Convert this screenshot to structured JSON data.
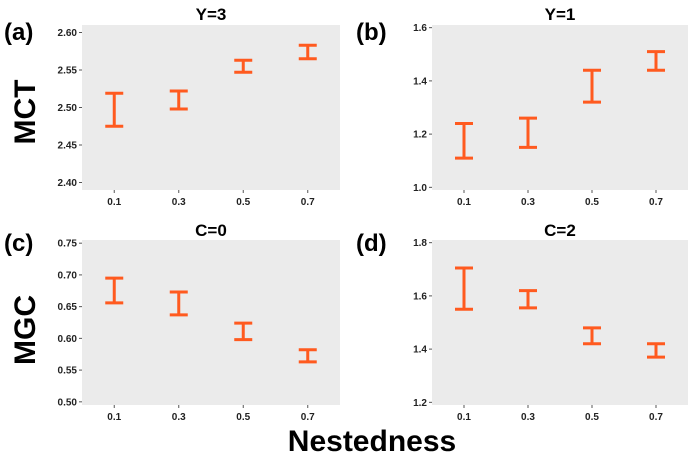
{
  "figure": {
    "x_axis_title": "Nestedness",
    "row_labels": [
      "MCT",
      "MGC"
    ],
    "errorbar_color": "#ff5a1f",
    "panel_background": "#ebebeb"
  },
  "chart_data": [
    {
      "type": "errorbar",
      "panel_letter": "(a)",
      "title": "Y=3",
      "categories": [
        "0.1",
        "0.3",
        "0.5",
        "0.7"
      ],
      "ylim": [
        2.39,
        2.61
      ],
      "yticks": [
        "2.40",
        "2.45",
        "2.50",
        "2.55",
        "2.60"
      ],
      "lower": [
        2.475,
        2.498,
        2.547,
        2.565
      ],
      "upper": [
        2.519,
        2.522,
        2.563,
        2.583
      ]
    },
    {
      "type": "errorbar",
      "panel_letter": "(b)",
      "title": "Y=1",
      "categories": [
        "0.1",
        "0.3",
        "0.5",
        "0.7"
      ],
      "ylim": [
        0.99,
        1.61
      ],
      "yticks": [
        "1.0",
        "1.2",
        "1.4",
        "1.6"
      ],
      "lower": [
        1.11,
        1.15,
        1.32,
        1.44
      ],
      "upper": [
        1.24,
        1.26,
        1.44,
        1.51
      ]
    },
    {
      "type": "errorbar",
      "panel_letter": "(c)",
      "title": "C=0",
      "categories": [
        "0.1",
        "0.3",
        "0.5",
        "0.7"
      ],
      "ylim": [
        0.495,
        0.755
      ],
      "yticks": [
        "0.50",
        "0.55",
        "0.60",
        "0.65",
        "0.70",
        "0.75"
      ],
      "lower": [
        0.656,
        0.637,
        0.598,
        0.563
      ],
      "upper": [
        0.695,
        0.673,
        0.624,
        0.582
      ]
    },
    {
      "type": "errorbar",
      "panel_letter": "(d)",
      "title": "C=2",
      "categories": [
        "0.1",
        "0.3",
        "0.5",
        "0.7"
      ],
      "ylim": [
        1.19,
        1.81
      ],
      "yticks": [
        "1.2",
        "1.4",
        "1.6",
        "1.8"
      ],
      "lower": [
        1.55,
        1.555,
        1.42,
        1.37
      ],
      "upper": [
        1.705,
        1.62,
        1.48,
        1.42
      ]
    }
  ]
}
